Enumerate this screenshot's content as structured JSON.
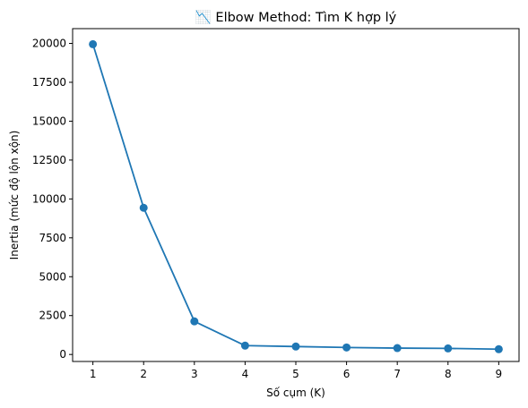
{
  "chart_data": {
    "type": "line",
    "title": "📉 Elbow Method: Tìm K hợp lý",
    "xlabel": "Số cụm (K)",
    "ylabel": "Inertia (mức độ lộn xộn)",
    "x": [
      1,
      2,
      3,
      4,
      5,
      6,
      7,
      8,
      9
    ],
    "x_ticks": [
      "1",
      "2",
      "3",
      "4",
      "5",
      "6",
      "7",
      "8",
      "9"
    ],
    "y_ticks": [
      0,
      2500,
      5000,
      7500,
      10000,
      12500,
      15000,
      17500,
      20000
    ],
    "y_tick_labels": [
      "0",
      "2500",
      "5000",
      "7500",
      "10000",
      "12500",
      "15000",
      "17500",
      "20000"
    ],
    "xlim": [
      0.6,
      9.4
    ],
    "ylim": [
      -450,
      20950
    ],
    "series": [
      {
        "values": [
          19950,
          9430,
          2130,
          570,
          510,
          450,
          410,
          390,
          340
        ],
        "color": "#1f77b4",
        "marker": "circle"
      }
    ],
    "grid": false,
    "legend": "none"
  }
}
